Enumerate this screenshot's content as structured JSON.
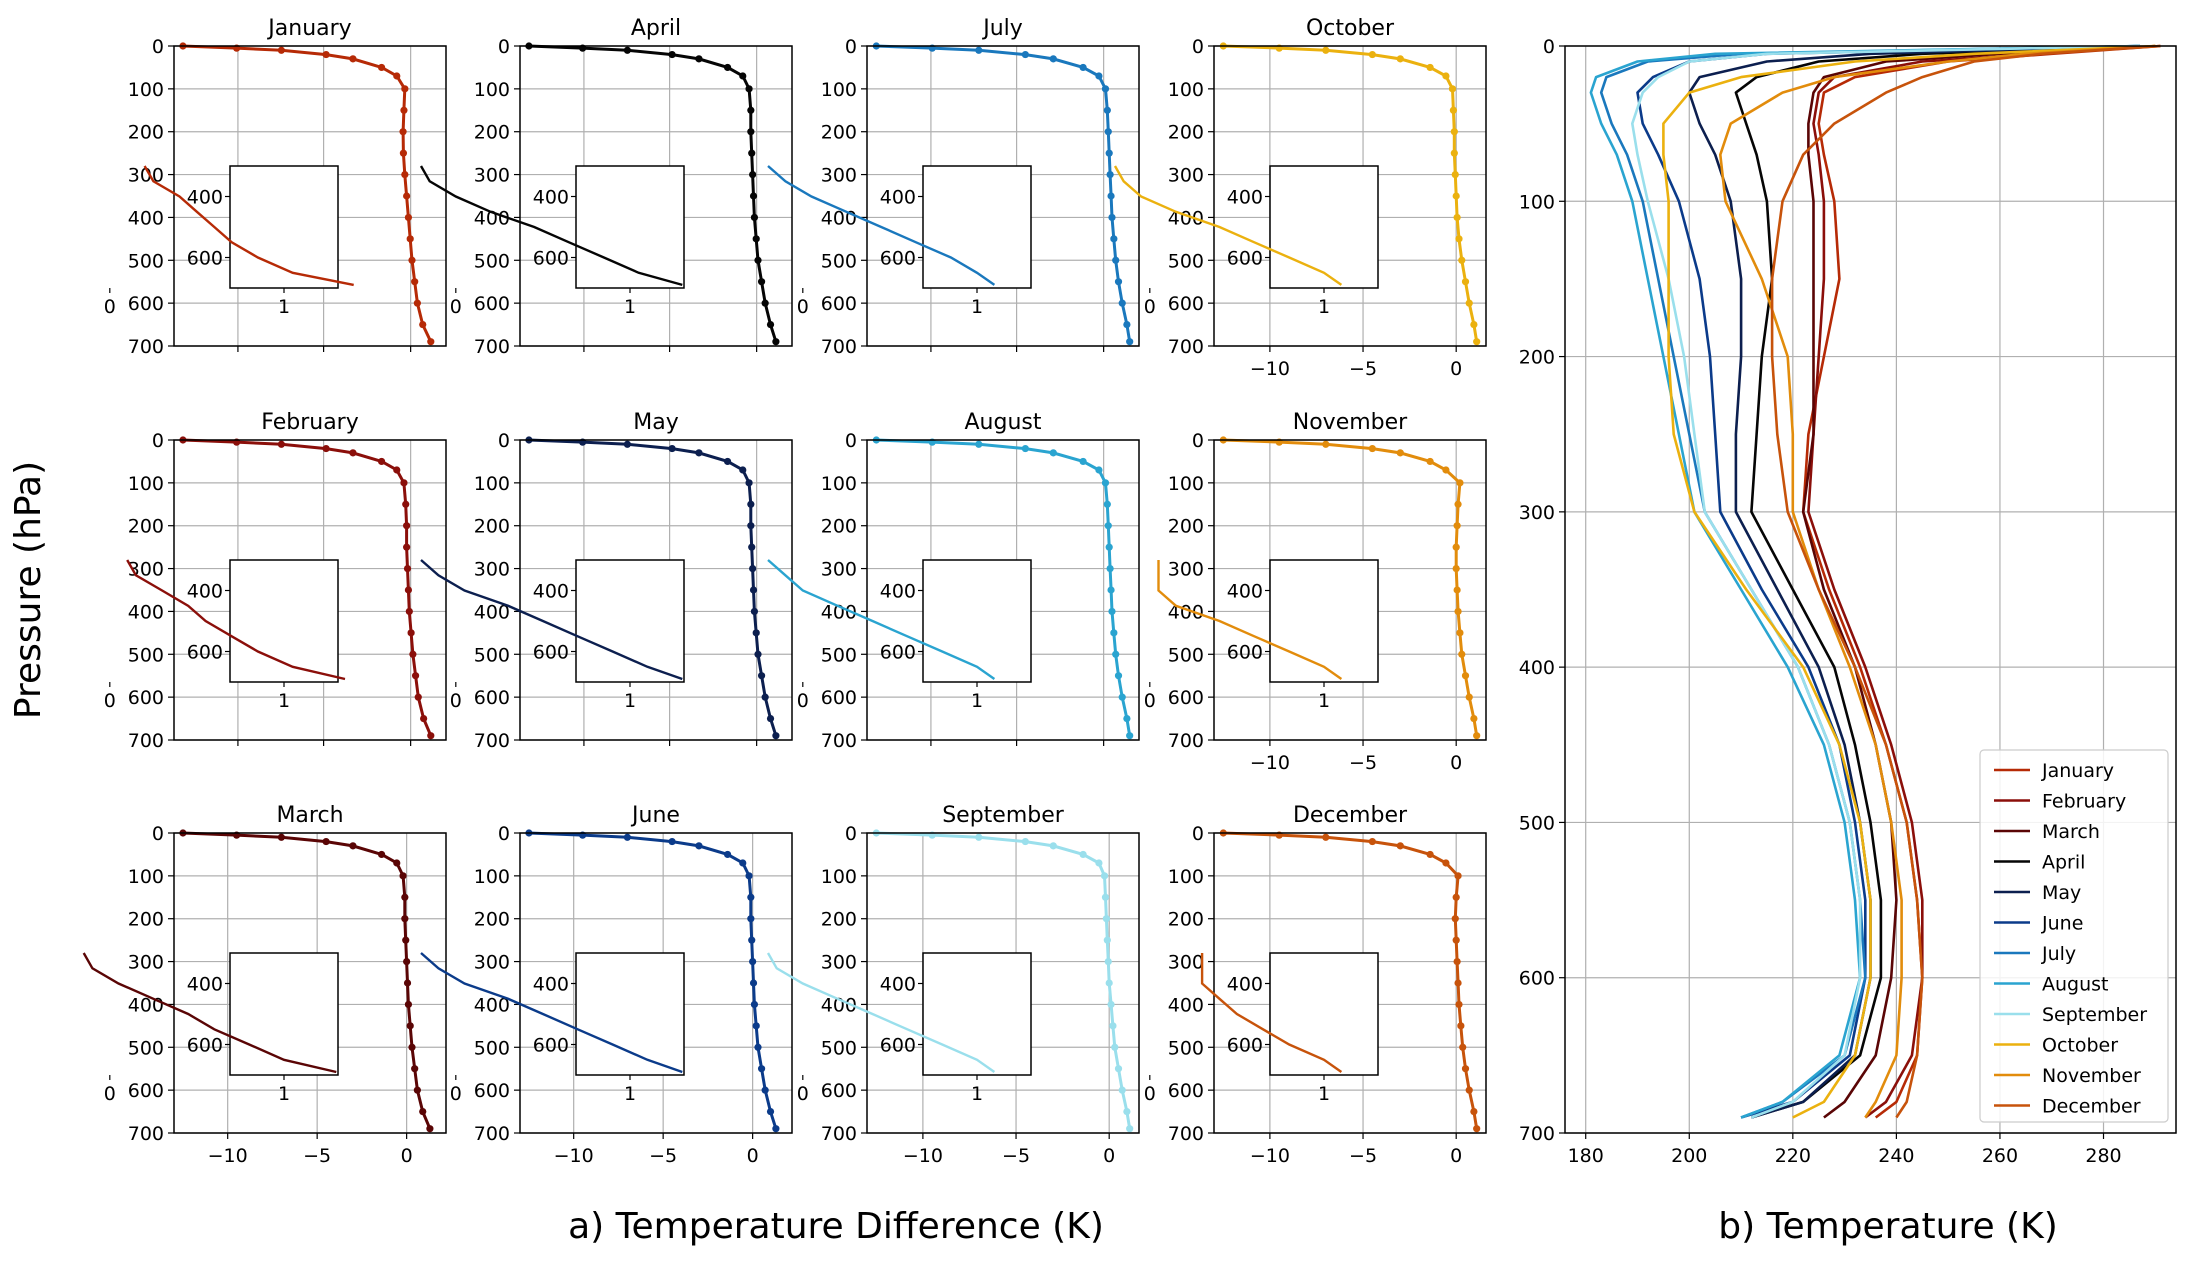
{
  "figure": {
    "ylabel": "Pressure (hPa)",
    "xlabel_a": "a) Temperature Difference (K)",
    "xlabel_b": "b) Temperature (K)"
  },
  "chart_data": [
    {
      "type": "line",
      "panel": "a",
      "layout": "grid of 12 small multiples, 3 rows x 4 columns (column-major by month), each with an inset zoom of 300-700 hPa",
      "xlabel": "a) Temperature Difference (K)",
      "ylabel": "Pressure (hPa)",
      "ylim": [
        700,
        0
      ],
      "y_ticks": [
        0,
        100,
        200,
        300,
        400,
        500,
        600,
        700
      ],
      "x_ticks_bottom_row": [
        -10,
        -5,
        0
      ],
      "x_ticks_october": [
        -10,
        -5,
        0
      ],
      "inset": {
        "ylim": [
          700,
          300
        ],
        "y_ticks": [
          400,
          600
        ],
        "x_ticks": [
          0,
          1
        ]
      },
      "grid": true,
      "markers": "dots",
      "pressure": [
        0,
        5,
        10,
        20,
        30,
        50,
        70,
        100,
        150,
        200,
        250,
        300,
        350,
        400,
        450,
        500,
        550,
        600,
        650,
        690
      ],
      "inset_pressure": [
        300,
        350,
        400,
        450,
        500,
        550,
        600,
        650,
        690
      ],
      "panels": [
        {
          "title": "January",
          "color": "#b62a06",
          "xlim": [
            -13,
            2.2
          ],
          "values": [
            -12.5,
            -9.5,
            -7,
            -4.5,
            -3,
            -1.4,
            -0.55,
            -0.1,
            -0.15,
            -0.2,
            -0.18,
            -0.1,
            0.0,
            0.1,
            0.2,
            0.3,
            0.45,
            0.6,
            0.9,
            1.35
          ],
          "inset_values": [
            0.2,
            0.25,
            0.4,
            0.5,
            0.6,
            0.7,
            0.85,
            1.05,
            1.4
          ]
        },
        {
          "title": "February",
          "color": "#8b0f0a",
          "xlim": [
            -13,
            2.2
          ],
          "values": [
            -12.5,
            -9.5,
            -7,
            -4.5,
            -3,
            -1.4,
            -0.55,
            -0.15,
            -0.05,
            0.0,
            0.0,
            0.05,
            0.1,
            0.15,
            0.25,
            0.35,
            0.5,
            0.65,
            0.95,
            1.35
          ],
          "inset_values": [
            0.1,
            0.15,
            0.3,
            0.45,
            0.55,
            0.7,
            0.85,
            1.05,
            1.35
          ]
        },
        {
          "title": "March",
          "color": "#5a0505",
          "xlim": [
            -13,
            2.2
          ],
          "values": [
            -12.5,
            -9.5,
            -7,
            -4.5,
            -3,
            -1.4,
            -0.55,
            -0.2,
            -0.1,
            -0.1,
            -0.05,
            0.0,
            0.05,
            0.1,
            0.2,
            0.3,
            0.45,
            0.6,
            0.9,
            1.3
          ],
          "inset_values": [
            -0.15,
            -0.1,
            0.05,
            0.25,
            0.45,
            0.6,
            0.8,
            1.0,
            1.3
          ]
        },
        {
          "title": "April",
          "color": "#050505",
          "xlim": [
            -13,
            2.2
          ],
          "values": [
            -12.5,
            -9.5,
            -7,
            -4.5,
            -3,
            -1.4,
            -0.55,
            -0.2,
            -0.1,
            -0.1,
            -0.05,
            0.0,
            0.05,
            0.1,
            0.2,
            0.3,
            0.5,
            0.7,
            1.0,
            1.3
          ],
          "inset_values": [
            -0.2,
            -0.15,
            0.0,
            0.2,
            0.45,
            0.65,
            0.85,
            1.05,
            1.3
          ]
        },
        {
          "title": "May",
          "color": "#0c1f4f",
          "xlim": [
            -13,
            2.2
          ],
          "values": [
            -12.5,
            -9.5,
            -7,
            -4.5,
            -3,
            -1.4,
            -0.55,
            -0.2,
            -0.1,
            -0.1,
            -0.05,
            0.0,
            0.05,
            0.1,
            0.2,
            0.3,
            0.5,
            0.7,
            1.0,
            1.3
          ],
          "inset_values": [
            -0.2,
            -0.1,
            0.05,
            0.3,
            0.5,
            0.7,
            0.9,
            1.1,
            1.3
          ]
        },
        {
          "title": "June",
          "color": "#0b3b8a",
          "xlim": [
            -13,
            2.2
          ],
          "values": [
            -12.5,
            -9.5,
            -7,
            -4.5,
            -3,
            -1.4,
            -0.55,
            -0.2,
            -0.1,
            -0.1,
            -0.05,
            0.0,
            0.05,
            0.1,
            0.2,
            0.3,
            0.5,
            0.7,
            1.0,
            1.3
          ],
          "inset_values": [
            -0.2,
            -0.1,
            0.05,
            0.3,
            0.5,
            0.7,
            0.9,
            1.1,
            1.3
          ]
        },
        {
          "title": "July",
          "color": "#1a78bd",
          "xlim": [
            -13,
            1.6
          ],
          "values": [
            -12.5,
            -9.5,
            -7,
            -4.5,
            -3,
            -1.4,
            -0.55,
            -0.2,
            -0.1,
            -0.05,
            0.0,
            0.05,
            0.1,
            0.15,
            0.25,
            0.35,
            0.5,
            0.7,
            0.95,
            1.1
          ],
          "inset_values": [
            -0.2,
            -0.1,
            0.05,
            0.25,
            0.45,
            0.65,
            0.85,
            1.0,
            1.1
          ]
        },
        {
          "title": "August",
          "color": "#2aa4d0",
          "xlim": [
            -13,
            1.6
          ],
          "values": [
            -12.5,
            -9.5,
            -7,
            -4.5,
            -3,
            -1.4,
            -0.55,
            -0.2,
            -0.1,
            -0.05,
            0.0,
            0.05,
            0.1,
            0.15,
            0.25,
            0.35,
            0.5,
            0.7,
            0.95,
            1.1
          ],
          "inset_values": [
            -0.2,
            -0.1,
            0.0,
            0.2,
            0.4,
            0.6,
            0.8,
            1.0,
            1.1
          ]
        },
        {
          "title": "September",
          "color": "#9adfec",
          "xlim": [
            -13,
            1.6
          ],
          "values": [
            -12.5,
            -9.5,
            -7,
            -4.5,
            -3,
            -1.4,
            -0.55,
            -0.25,
            -0.2,
            -0.15,
            -0.1,
            -0.05,
            0.0,
            0.1,
            0.2,
            0.3,
            0.5,
            0.7,
            0.95,
            1.1
          ],
          "inset_values": [
            -0.2,
            -0.15,
            0.0,
            0.2,
            0.4,
            0.6,
            0.8,
            1.0,
            1.1
          ]
        },
        {
          "title": "October",
          "color": "#ebb10f",
          "xlim": [
            -13,
            1.6
          ],
          "values": [
            -12.5,
            -9.5,
            -7,
            -4.5,
            -3,
            -1.4,
            -0.55,
            -0.2,
            -0.15,
            -0.1,
            -0.1,
            -0.05,
            0.0,
            0.05,
            0.15,
            0.3,
            0.5,
            0.7,
            0.95,
            1.1
          ],
          "inset_values": [
            -0.2,
            -0.15,
            -0.05,
            0.15,
            0.4,
            0.6,
            0.8,
            1.0,
            1.1
          ]
        },
        {
          "title": "November",
          "color": "#e28c0c",
          "xlim": [
            -13,
            1.6
          ],
          "values": [
            -12.5,
            -9.5,
            -7,
            -4.5,
            -3,
            -1.4,
            -0.55,
            0.2,
            0.1,
            0.05,
            0.0,
            0.0,
            0.05,
            0.1,
            0.2,
            0.3,
            0.5,
            0.7,
            0.95,
            1.1
          ],
          "inset_values": [
            0.05,
            0.05,
            0.05,
            0.15,
            0.4,
            0.6,
            0.8,
            1.0,
            1.1
          ]
        },
        {
          "title": "December",
          "color": "#c7530b",
          "xlim": [
            -13,
            1.6
          ],
          "values": [
            -12.5,
            -9.5,
            -7,
            -4.5,
            -3,
            -1.4,
            -0.55,
            0.1,
            0.0,
            -0.05,
            0.0,
            0.05,
            0.1,
            0.15,
            0.25,
            0.35,
            0.5,
            0.7,
            0.95,
            1.1
          ],
          "inset_values": [
            0.3,
            0.3,
            0.3,
            0.4,
            0.5,
            0.65,
            0.8,
            1.0,
            1.1
          ]
        }
      ]
    },
    {
      "type": "line",
      "panel": "b",
      "xlabel": "b) Temperature (K)",
      "ylabel": "Pressure (hPa)",
      "xlim": [
        176,
        294
      ],
      "ylim": [
        700,
        0
      ],
      "x_ticks": [
        180,
        200,
        220,
        240,
        260,
        280
      ],
      "y_ticks": [
        0,
        100,
        200,
        300,
        400,
        500,
        600,
        700
      ],
      "grid": true,
      "legend": "bottom-right",
      "pressure": [
        0,
        5,
        10,
        20,
        30,
        50,
        70,
        100,
        150,
        200,
        250,
        300,
        350,
        400,
        450,
        500,
        550,
        600,
        650,
        680,
        690
      ],
      "series": [
        {
          "name": "January",
          "color": "#b62a06",
          "values": [
            291,
            270,
            250,
            232,
            226,
            225,
            226,
            228,
            229,
            226,
            223,
            222,
            227,
            233,
            238,
            242,
            244,
            245,
            244,
            240,
            236
          ]
        },
        {
          "name": "February",
          "color": "#8b0f0a",
          "values": [
            290,
            268,
            245,
            228,
            225,
            224,
            225,
            226,
            226,
            225,
            224,
            223,
            228,
            234,
            239,
            243,
            245,
            245,
            243,
            238,
            234
          ]
        },
        {
          "name": "March",
          "color": "#5a0505",
          "values": [
            287,
            260,
            238,
            226,
            224,
            223,
            223,
            224,
            224,
            224,
            224,
            222,
            226,
            232,
            236,
            239,
            240,
            239,
            236,
            230,
            226
          ]
        },
        {
          "name": "April",
          "color": "#050505",
          "values": [
            287,
            245,
            225,
            213,
            209,
            211,
            213,
            215,
            216,
            214,
            213,
            212,
            220,
            228,
            232,
            235,
            237,
            237,
            233,
            222,
            212
          ]
        },
        {
          "name": "May",
          "color": "#0c1f4f",
          "values": [
            287,
            235,
            215,
            202,
            200,
            202,
            205,
            208,
            210,
            210,
            209,
            209,
            217,
            225,
            230,
            233,
            235,
            235,
            232,
            222,
            212
          ]
        },
        {
          "name": "June",
          "color": "#0b3b8a",
          "values": [
            287,
            215,
            200,
            193,
            190,
            191,
            194,
            198,
            202,
            204,
            205,
            206,
            214,
            223,
            229,
            232,
            234,
            234,
            231,
            220,
            210
          ]
        },
        {
          "name": "July",
          "color": "#1a78bd",
          "values": [
            287,
            210,
            192,
            184,
            183,
            185,
            188,
            191,
            194,
            197,
            200,
            203,
            212,
            221,
            227,
            231,
            233,
            234,
            230,
            218,
            210
          ]
        },
        {
          "name": "August",
          "color": "#2aa4d0",
          "values": [
            287,
            205,
            190,
            182,
            181,
            183,
            186,
            189,
            192,
            195,
            198,
            201,
            210,
            219,
            226,
            230,
            232,
            233,
            229,
            218,
            210
          ]
        },
        {
          "name": "September",
          "color": "#9adfec",
          "values": [
            287,
            215,
            200,
            194,
            191,
            189,
            190,
            192,
            196,
            199,
            201,
            203,
            212,
            221,
            227,
            231,
            233,
            233,
            230,
            220,
            212
          ]
        },
        {
          "name": "October",
          "color": "#ebb10f",
          "values": [
            290,
            255,
            232,
            210,
            200,
            195,
            195,
            196,
            196,
            196,
            197,
            201,
            211,
            222,
            229,
            233,
            235,
            235,
            232,
            226,
            220
          ]
        },
        {
          "name": "November",
          "color": "#e28c0c",
          "values": [
            290,
            265,
            250,
            228,
            218,
            208,
            206,
            207,
            214,
            219,
            220,
            220,
            225,
            231,
            236,
            239,
            241,
            241,
            240,
            236,
            234
          ]
        },
        {
          "name": "December",
          "color": "#c7530b",
          "values": [
            291,
            268,
            255,
            245,
            238,
            228,
            222,
            218,
            216,
            216,
            217,
            219,
            225,
            232,
            238,
            242,
            244,
            245,
            244,
            242,
            240
          ]
        }
      ]
    }
  ]
}
